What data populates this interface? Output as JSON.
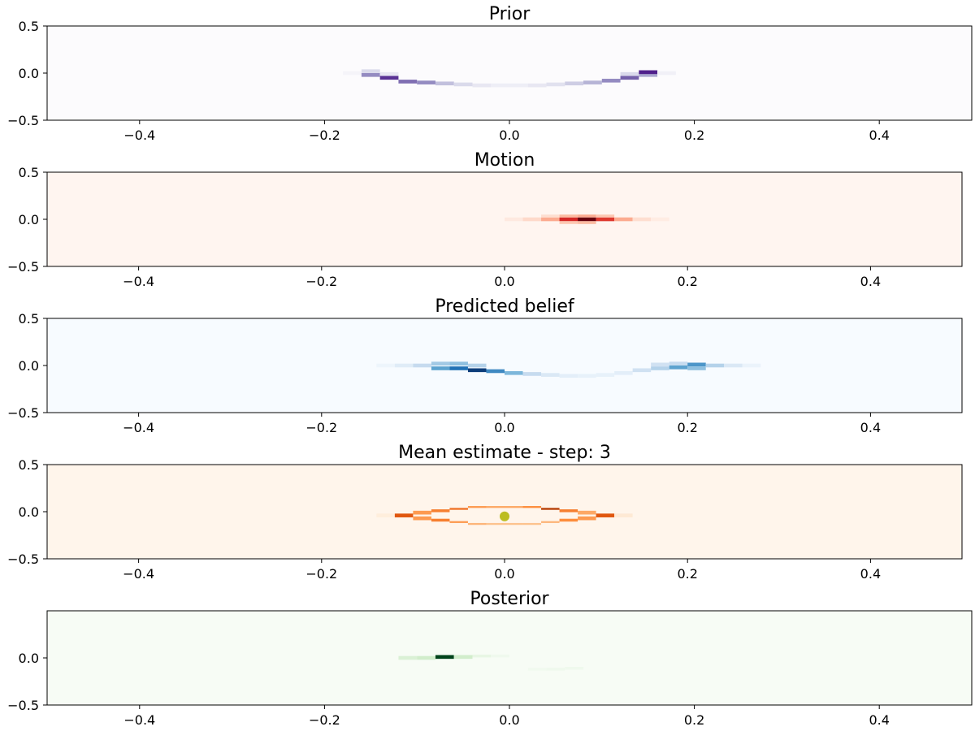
{
  "figure": {
    "background": "#ffffff"
  },
  "chart_data": [
    {
      "type": "heatmap",
      "title": "Prior",
      "colormap": "purples",
      "xlim": [
        -0.5,
        0.5
      ],
      "ylim": [
        -0.5,
        0.5
      ],
      "xticks": [
        -0.4,
        -0.2,
        0.0,
        0.2,
        0.4
      ],
      "xtick_labels": [
        "−0.4",
        "−0.2",
        "0.0",
        "0.2",
        "0.4"
      ],
      "yticks": [
        0.5,
        0.0,
        -0.5
      ],
      "ytick_labels": [
        "0.5",
        "0.0",
        "−0.5"
      ],
      "background_color": "#fcfbfd",
      "cells": [
        {
          "x": -0.17,
          "y": 0.0,
          "w": 0.02,
          "h": 0.04,
          "v": 0.05
        },
        {
          "x": -0.15,
          "y": -0.02,
          "w": 0.02,
          "h": 0.04,
          "v": 0.55
        },
        {
          "x": -0.15,
          "y": 0.02,
          "w": 0.02,
          "h": 0.04,
          "v": 0.25
        },
        {
          "x": -0.13,
          "y": -0.05,
          "w": 0.02,
          "h": 0.04,
          "v": 0.85
        },
        {
          "x": -0.13,
          "y": -0.01,
          "w": 0.02,
          "h": 0.04,
          "v": 0.15
        },
        {
          "x": -0.11,
          "y": -0.09,
          "w": 0.02,
          "h": 0.04,
          "v": 0.65
        },
        {
          "x": -0.09,
          "y": -0.1,
          "w": 0.02,
          "h": 0.04,
          "v": 0.55
        },
        {
          "x": -0.07,
          "y": -0.11,
          "w": 0.02,
          "h": 0.04,
          "v": 0.35
        },
        {
          "x": -0.05,
          "y": -0.12,
          "w": 0.02,
          "h": 0.04,
          "v": 0.25
        },
        {
          "x": -0.03,
          "y": -0.13,
          "w": 0.02,
          "h": 0.04,
          "v": 0.15
        },
        {
          "x": -0.01,
          "y": -0.13,
          "w": 0.02,
          "h": 0.04,
          "v": 0.1
        },
        {
          "x": 0.01,
          "y": -0.13,
          "w": 0.02,
          "h": 0.04,
          "v": 0.1
        },
        {
          "x": 0.03,
          "y": -0.13,
          "w": 0.02,
          "h": 0.04,
          "v": 0.15
        },
        {
          "x": 0.05,
          "y": -0.12,
          "w": 0.02,
          "h": 0.04,
          "v": 0.2
        },
        {
          "x": 0.07,
          "y": -0.11,
          "w": 0.02,
          "h": 0.04,
          "v": 0.3
        },
        {
          "x": 0.09,
          "y": -0.1,
          "w": 0.02,
          "h": 0.04,
          "v": 0.4
        },
        {
          "x": 0.11,
          "y": -0.08,
          "w": 0.02,
          "h": 0.04,
          "v": 0.55
        },
        {
          "x": 0.13,
          "y": -0.05,
          "w": 0.02,
          "h": 0.04,
          "v": 0.7
        },
        {
          "x": 0.13,
          "y": -0.01,
          "w": 0.02,
          "h": 0.04,
          "v": 0.25
        },
        {
          "x": 0.15,
          "y": -0.02,
          "w": 0.02,
          "h": 0.04,
          "v": 0.45
        },
        {
          "x": 0.15,
          "y": 0.01,
          "w": 0.02,
          "h": 0.04,
          "v": 0.9
        },
        {
          "x": 0.17,
          "y": 0.0,
          "w": 0.02,
          "h": 0.04,
          "v": 0.08
        }
      ]
    },
    {
      "type": "heatmap",
      "title": "Motion",
      "colormap": "reds",
      "xlim": [
        -0.5,
        0.5
      ],
      "ylim": [
        -0.5,
        0.5
      ],
      "xticks": [
        -0.4,
        -0.2,
        0.0,
        0.2,
        0.4
      ],
      "xtick_labels": [
        "−0.4",
        "−0.2",
        "0.0",
        "0.2",
        "0.4"
      ],
      "yticks": [
        0.5,
        0.0,
        -0.5
      ],
      "ytick_labels": [
        "0.5",
        "0.0",
        "−0.5"
      ],
      "background_color": "#fff5f0",
      "cells": [
        {
          "x": 0.01,
          "y": 0.0,
          "w": 0.02,
          "h": 0.04,
          "v": 0.05
        },
        {
          "x": 0.03,
          "y": 0.0,
          "w": 0.02,
          "h": 0.04,
          "v": 0.12
        },
        {
          "x": 0.05,
          "y": 0.0,
          "w": 0.02,
          "h": 0.04,
          "v": 0.3
        },
        {
          "x": 0.07,
          "y": 0.0,
          "w": 0.02,
          "h": 0.04,
          "v": 0.7
        },
        {
          "x": 0.09,
          "y": 0.0,
          "w": 0.02,
          "h": 0.04,
          "v": 1.0
        },
        {
          "x": 0.11,
          "y": 0.0,
          "w": 0.02,
          "h": 0.04,
          "v": 0.65
        },
        {
          "x": 0.13,
          "y": 0.0,
          "w": 0.02,
          "h": 0.04,
          "v": 0.3
        },
        {
          "x": 0.15,
          "y": 0.0,
          "w": 0.02,
          "h": 0.04,
          "v": 0.1
        },
        {
          "x": 0.17,
          "y": 0.0,
          "w": 0.02,
          "h": 0.04,
          "v": 0.04
        },
        {
          "x": 0.05,
          "y": 0.035,
          "w": 0.02,
          "h": 0.03,
          "v": 0.1
        },
        {
          "x": 0.07,
          "y": 0.035,
          "w": 0.02,
          "h": 0.03,
          "v": 0.25
        },
        {
          "x": 0.09,
          "y": 0.035,
          "w": 0.02,
          "h": 0.03,
          "v": 0.3
        },
        {
          "x": 0.11,
          "y": 0.035,
          "w": 0.02,
          "h": 0.03,
          "v": 0.2
        },
        {
          "x": 0.07,
          "y": -0.035,
          "w": 0.02,
          "h": 0.03,
          "v": 0.2
        },
        {
          "x": 0.09,
          "y": -0.035,
          "w": 0.02,
          "h": 0.03,
          "v": 0.25
        }
      ]
    },
    {
      "type": "heatmap",
      "title": "Predicted belief",
      "colormap": "blues",
      "xlim": [
        -0.5,
        0.5
      ],
      "ylim": [
        -0.5,
        0.5
      ],
      "xticks": [
        -0.4,
        -0.2,
        0.0,
        0.2,
        0.4
      ],
      "xtick_labels": [
        "−0.4",
        "−0.2",
        "0.0",
        "0.2",
        "0.4"
      ],
      "yticks": [
        0.5,
        0.0,
        -0.5
      ],
      "ytick_labels": [
        "0.5",
        "0.0",
        "−0.5"
      ],
      "background_color": "#f7fbff",
      "cells": [
        {
          "x": -0.13,
          "y": 0.0,
          "w": 0.02,
          "h": 0.04,
          "v": 0.05
        },
        {
          "x": -0.11,
          "y": 0.0,
          "w": 0.02,
          "h": 0.04,
          "v": 0.12
        },
        {
          "x": -0.09,
          "y": 0.0,
          "w": 0.02,
          "h": 0.04,
          "v": 0.25
        },
        {
          "x": -0.07,
          "y": 0.02,
          "w": 0.02,
          "h": 0.04,
          "v": 0.35
        },
        {
          "x": -0.07,
          "y": -0.03,
          "w": 0.02,
          "h": 0.04,
          "v": 0.55
        },
        {
          "x": -0.05,
          "y": 0.02,
          "w": 0.02,
          "h": 0.04,
          "v": 0.4
        },
        {
          "x": -0.05,
          "y": -0.03,
          "w": 0.02,
          "h": 0.04,
          "v": 0.75
        },
        {
          "x": -0.03,
          "y": -0.05,
          "w": 0.02,
          "h": 0.04,
          "v": 0.95
        },
        {
          "x": -0.03,
          "y": 0.0,
          "w": 0.02,
          "h": 0.04,
          "v": 0.3
        },
        {
          "x": -0.01,
          "y": -0.06,
          "w": 0.02,
          "h": 0.04,
          "v": 0.65
        },
        {
          "x": 0.01,
          "y": -0.08,
          "w": 0.02,
          "h": 0.04,
          "v": 0.45
        },
        {
          "x": 0.03,
          "y": -0.09,
          "w": 0.02,
          "h": 0.04,
          "v": 0.25
        },
        {
          "x": 0.05,
          "y": -0.1,
          "w": 0.02,
          "h": 0.04,
          "v": 0.15
        },
        {
          "x": 0.07,
          "y": -0.11,
          "w": 0.02,
          "h": 0.04,
          "v": 0.1
        },
        {
          "x": 0.09,
          "y": -0.11,
          "w": 0.02,
          "h": 0.04,
          "v": 0.08
        },
        {
          "x": 0.11,
          "y": -0.1,
          "w": 0.02,
          "h": 0.04,
          "v": 0.08
        },
        {
          "x": 0.13,
          "y": -0.08,
          "w": 0.02,
          "h": 0.04,
          "v": 0.1
        },
        {
          "x": 0.15,
          "y": -0.05,
          "w": 0.02,
          "h": 0.04,
          "v": 0.2
        },
        {
          "x": 0.17,
          "y": -0.03,
          "w": 0.02,
          "h": 0.04,
          "v": 0.3
        },
        {
          "x": 0.17,
          "y": 0.01,
          "w": 0.02,
          "h": 0.04,
          "v": 0.2
        },
        {
          "x": 0.19,
          "y": -0.02,
          "w": 0.02,
          "h": 0.04,
          "v": 0.55
        },
        {
          "x": 0.19,
          "y": 0.02,
          "w": 0.02,
          "h": 0.04,
          "v": 0.25
        },
        {
          "x": 0.21,
          "y": 0.01,
          "w": 0.02,
          "h": 0.04,
          "v": 0.6
        },
        {
          "x": 0.21,
          "y": -0.03,
          "w": 0.02,
          "h": 0.04,
          "v": 0.4
        },
        {
          "x": 0.23,
          "y": 0.0,
          "w": 0.02,
          "h": 0.04,
          "v": 0.3
        },
        {
          "x": 0.25,
          "y": 0.0,
          "w": 0.02,
          "h": 0.04,
          "v": 0.15
        },
        {
          "x": 0.27,
          "y": 0.0,
          "w": 0.02,
          "h": 0.04,
          "v": 0.06
        }
      ]
    },
    {
      "type": "heatmap",
      "title": "Mean estimate - step: 3",
      "colormap": "oranges",
      "xlim": [
        -0.5,
        0.5
      ],
      "ylim": [
        -0.5,
        0.5
      ],
      "xticks": [
        -0.4,
        -0.2,
        0.0,
        0.2,
        0.4
      ],
      "xtick_labels": [
        "−0.4",
        "−0.2",
        "0.0",
        "0.2",
        "0.4"
      ],
      "yticks": [
        0.5,
        0.0,
        -0.5
      ],
      "ytick_labels": [
        "0.5",
        "0.0",
        "−0.5"
      ],
      "background_color": "#fff5eb",
      "cells": [
        {
          "x": -0.13,
          "y": -0.04,
          "w": 0.02,
          "h": 0.04,
          "v": 0.05
        },
        {
          "x": -0.11,
          "y": -0.04,
          "w": 0.02,
          "h": 0.04,
          "v": 0.7
        },
        {
          "x": -0.09,
          "y": -0.01,
          "w": 0.02,
          "h": 0.04,
          "v": 0.45
        },
        {
          "x": -0.09,
          "y": -0.07,
          "w": 0.02,
          "h": 0.04,
          "v": 0.45
        },
        {
          "x": -0.07,
          "y": 0.01,
          "w": 0.02,
          "h": 0.03,
          "v": 0.55
        },
        {
          "x": -0.07,
          "y": -0.09,
          "w": 0.02,
          "h": 0.03,
          "v": 0.55
        },
        {
          "x": -0.05,
          "y": 0.03,
          "w": 0.02,
          "h": 0.02,
          "v": 0.6
        },
        {
          "x": -0.05,
          "y": -0.11,
          "w": 0.02,
          "h": 0.02,
          "v": 0.45
        },
        {
          "x": -0.03,
          "y": 0.05,
          "w": 0.02,
          "h": 0.02,
          "v": 0.45
        },
        {
          "x": -0.03,
          "y": -0.13,
          "w": 0.02,
          "h": 0.02,
          "v": 0.35
        },
        {
          "x": -0.01,
          "y": 0.05,
          "w": 0.02,
          "h": 0.02,
          "v": 0.4
        },
        {
          "x": -0.01,
          "y": -0.13,
          "w": 0.02,
          "h": 0.02,
          "v": 0.3
        },
        {
          "x": 0.01,
          "y": 0.05,
          "w": 0.02,
          "h": 0.02,
          "v": 0.4
        },
        {
          "x": 0.01,
          "y": -0.13,
          "w": 0.02,
          "h": 0.02,
          "v": 0.3
        },
        {
          "x": 0.03,
          "y": 0.05,
          "w": 0.02,
          "h": 0.02,
          "v": 0.5
        },
        {
          "x": 0.03,
          "y": -0.13,
          "w": 0.02,
          "h": 0.02,
          "v": 0.3
        },
        {
          "x": 0.05,
          "y": 0.03,
          "w": 0.02,
          "h": 0.02,
          "v": 0.85
        },
        {
          "x": 0.05,
          "y": -0.11,
          "w": 0.02,
          "h": 0.02,
          "v": 0.35
        },
        {
          "x": 0.07,
          "y": 0.01,
          "w": 0.02,
          "h": 0.03,
          "v": 0.55
        },
        {
          "x": 0.07,
          "y": -0.09,
          "w": 0.02,
          "h": 0.03,
          "v": 0.5
        },
        {
          "x": 0.09,
          "y": -0.01,
          "w": 0.02,
          "h": 0.04,
          "v": 0.4
        },
        {
          "x": 0.09,
          "y": -0.07,
          "w": 0.02,
          "h": 0.04,
          "v": 0.45
        },
        {
          "x": 0.11,
          "y": -0.04,
          "w": 0.02,
          "h": 0.04,
          "v": 0.7
        },
        {
          "x": 0.13,
          "y": -0.04,
          "w": 0.02,
          "h": 0.04,
          "v": 0.08
        }
      ],
      "markers": [
        {
          "x": 0.0,
          "y": -0.05,
          "color": "#bcbd22"
        }
      ]
    },
    {
      "type": "heatmap",
      "title": "Posterior",
      "colormap": "greens",
      "xlim": [
        -0.5,
        0.5
      ],
      "ylim": [
        -0.5,
        0.5
      ],
      "xticks": [
        -0.4,
        -0.2,
        0.0,
        0.2,
        0.4
      ],
      "xtick_labels": [
        "−0.4",
        "−0.2",
        "0.0",
        "0.2",
        "0.4"
      ],
      "yticks": [
        0.0,
        -0.5
      ],
      "ytick_labels": [
        "0.0",
        "−0.5"
      ],
      "background_color": "#f7fcf5",
      "cells": [
        {
          "x": -0.11,
          "y": 0.0,
          "w": 0.02,
          "h": 0.04,
          "v": 0.15
        },
        {
          "x": -0.09,
          "y": 0.0,
          "w": 0.02,
          "h": 0.04,
          "v": 0.2
        },
        {
          "x": -0.07,
          "y": 0.01,
          "w": 0.02,
          "h": 0.04,
          "v": 1.0
        },
        {
          "x": -0.05,
          "y": 0.01,
          "w": 0.02,
          "h": 0.04,
          "v": 0.2
        },
        {
          "x": -0.03,
          "y": 0.02,
          "w": 0.02,
          "h": 0.03,
          "v": 0.08
        },
        {
          "x": -0.01,
          "y": 0.02,
          "w": 0.02,
          "h": 0.03,
          "v": 0.04
        },
        {
          "x": 0.03,
          "y": -0.12,
          "w": 0.02,
          "h": 0.03,
          "v": 0.03
        },
        {
          "x": 0.05,
          "y": -0.12,
          "w": 0.02,
          "h": 0.03,
          "v": 0.04
        },
        {
          "x": 0.07,
          "y": -0.11,
          "w": 0.02,
          "h": 0.03,
          "v": 0.04
        }
      ]
    }
  ]
}
